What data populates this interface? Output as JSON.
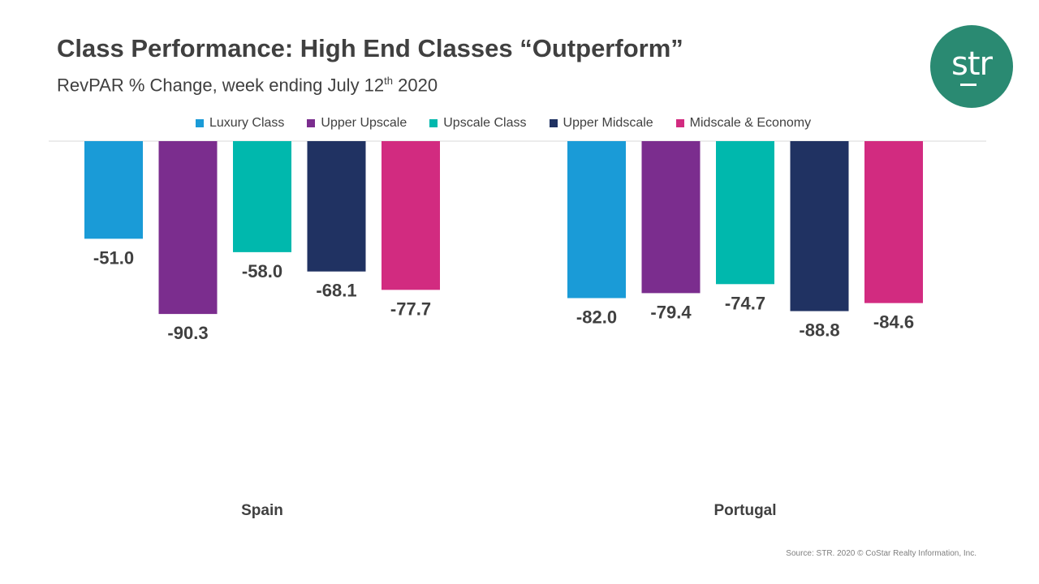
{
  "header": {
    "title": "Class Performance: High End Classes “Outperform”",
    "subtitle_main": "RevPAR % Change, week ending July 12",
    "subtitle_sup": "th",
    "subtitle_end": " 2020"
  },
  "logo": {
    "text": "str",
    "color": "#2a8a72"
  },
  "footer": {
    "source": "Source: STR. 2020 © CoStar Realty Information, Inc."
  },
  "chart_data": {
    "type": "bar",
    "title": "Class Performance: High End Classes “Outperform”",
    "subtitle": "RevPAR % Change, week ending July 12th 2020",
    "categories": [
      "Spain",
      "Portugal"
    ],
    "series": [
      {
        "name": "Luxury Class",
        "color": "#1a9bd7",
        "values": [
          -51.0,
          -82.0
        ]
      },
      {
        "name": "Upper Upscale",
        "color": "#7b2d8e",
        "values": [
          -90.3,
          -79.4
        ]
      },
      {
        "name": "Upscale Class",
        "color": "#00b8ad",
        "values": [
          -58.0,
          -74.7
        ]
      },
      {
        "name": "Upper Midscale",
        "color": "#203262",
        "values": [
          -68.1,
          -88.8
        ]
      },
      {
        "name": "Midscale & Economy",
        "color": "#d22b80",
        "values": [
          -77.7,
          -84.6
        ]
      }
    ],
    "value_labels": {
      "Spain": [
        "-51.0",
        "-90.3",
        "-58.0",
        "-68.1",
        "-77.7"
      ],
      "Portugal": [
        "-82.0",
        "-79.4",
        "-74.7",
        "-88.8",
        "-84.6"
      ]
    },
    "ylim": [
      -100,
      0
    ],
    "legend_position": "top",
    "grid": false
  }
}
